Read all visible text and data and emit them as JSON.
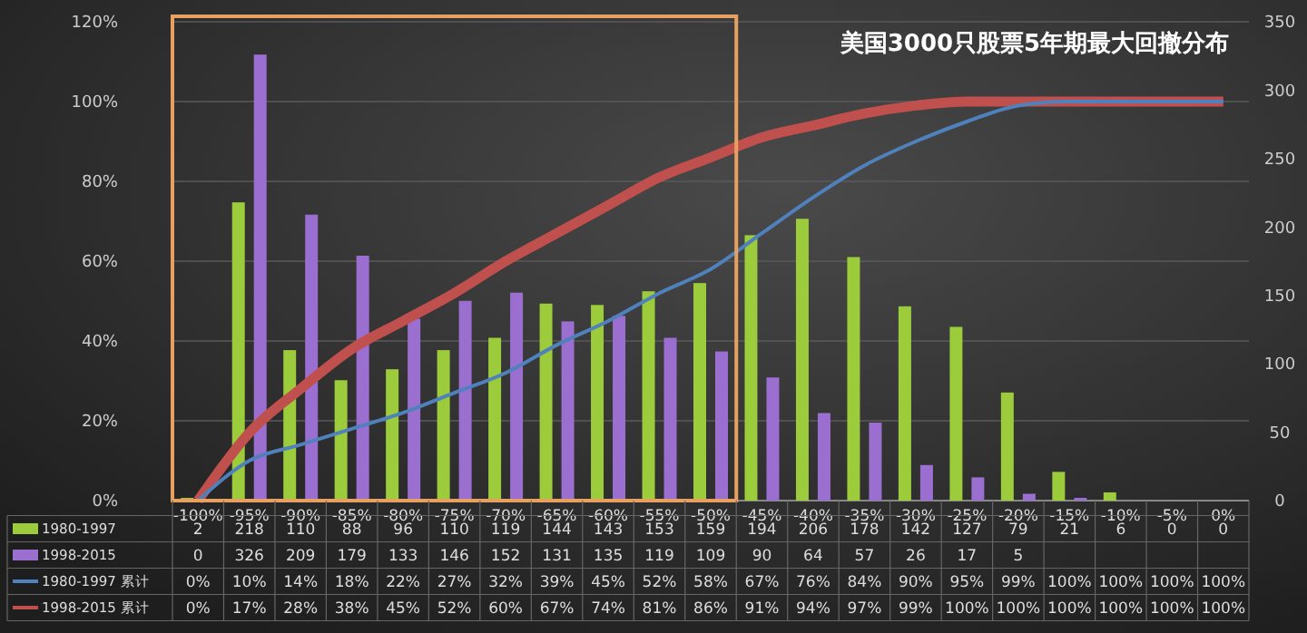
{
  "chart_data": {
    "type": "bar",
    "title": "美国3000只股票5年期最大回撤分布",
    "categories": [
      "-100%",
      "-95%",
      "-90%",
      "-85%",
      "-80%",
      "-75%",
      "-70%",
      "-65%",
      "-60%",
      "-55%",
      "-50%",
      "-45%",
      "-40%",
      "-35%",
      "-30%",
      "-25%",
      "-20%",
      "-15%",
      "-10%",
      "-5%",
      "0%"
    ],
    "series": [
      {
        "name": "1980-1997",
        "axis": "y2",
        "color": "#9ccb3b",
        "values": [
          2,
          218,
          110,
          88,
          96,
          110,
          119,
          144,
          143,
          153,
          159,
          194,
          206,
          178,
          142,
          127,
          79,
          21,
          6,
          0,
          0
        ],
        "value_labels": [
          "2",
          "218",
          "110",
          "88",
          "96",
          "110",
          "119",
          "144",
          "143",
          "153",
          "159",
          "194",
          "206",
          "178",
          "142",
          "127",
          "79",
          "21",
          "6",
          "0",
          "0"
        ]
      },
      {
        "name": "1998-2015",
        "axis": "y2",
        "color": "#9b6fcf",
        "values": [
          0,
          326,
          209,
          179,
          133,
          146,
          152,
          131,
          135,
          119,
          109,
          90,
          64,
          57,
          26,
          17,
          5,
          2,
          0,
          0,
          0
        ],
        "value_labels": [
          "0",
          "326",
          "209",
          "179",
          "133",
          "146",
          "152",
          "131",
          "135",
          "119",
          "109",
          "90",
          "64",
          "57",
          "26",
          "17",
          "5",
          null,
          null,
          null,
          null
        ]
      },
      {
        "name": "1980-1997 累计",
        "type": "line",
        "color": "#4f81bd",
        "values": [
          0,
          10,
          14,
          18,
          22,
          27,
          32,
          39,
          45,
          52,
          58,
          67,
          76,
          84,
          90,
          95,
          99,
          100,
          100,
          100,
          100
        ],
        "value_labels": [
          "0%",
          "10%",
          "14%",
          "18%",
          "22%",
          "27%",
          "32%",
          "39%",
          "45%",
          "52%",
          "58%",
          "67%",
          "76%",
          "84%",
          "90%",
          "95%",
          "99%",
          "100%",
          "100%",
          "100%",
          "100%"
        ]
      },
      {
        "name": "1998-2015 累计",
        "type": "line",
        "color": "#c0504d",
        "values": [
          0,
          17,
          28,
          38,
          45,
          52,
          60,
          67,
          74,
          81,
          86,
          91,
          94,
          97,
          99,
          100,
          100,
          100,
          100,
          100,
          100
        ],
        "value_labels": [
          "0%",
          "17%",
          "28%",
          "38%",
          "45%",
          "52%",
          "60%",
          "67%",
          "74%",
          "81%",
          "86%",
          "91%",
          "94%",
          "97%",
          "99%",
          "100%",
          "100%",
          "100%",
          "100%",
          "100%",
          "100%"
        ]
      }
    ],
    "ylim": [
      0,
      120
    ],
    "yticks": [
      {
        "value": 0,
        "label": "0%"
      },
      {
        "value": 20,
        "label": "20%"
      },
      {
        "value": 40,
        "label": "40%"
      },
      {
        "value": 60,
        "label": "60%"
      },
      {
        "value": 80,
        "label": "80%"
      },
      {
        "value": 100,
        "label": "100%"
      },
      {
        "value": 120,
        "label": "120%"
      }
    ],
    "y2lim": [
      0,
      350
    ],
    "y2ticks": [
      0,
      50,
      100,
      150,
      200,
      250,
      300,
      350
    ],
    "grid": "y",
    "legend": "bottom",
    "marker": "none",
    "line_style": "solid"
  }
}
